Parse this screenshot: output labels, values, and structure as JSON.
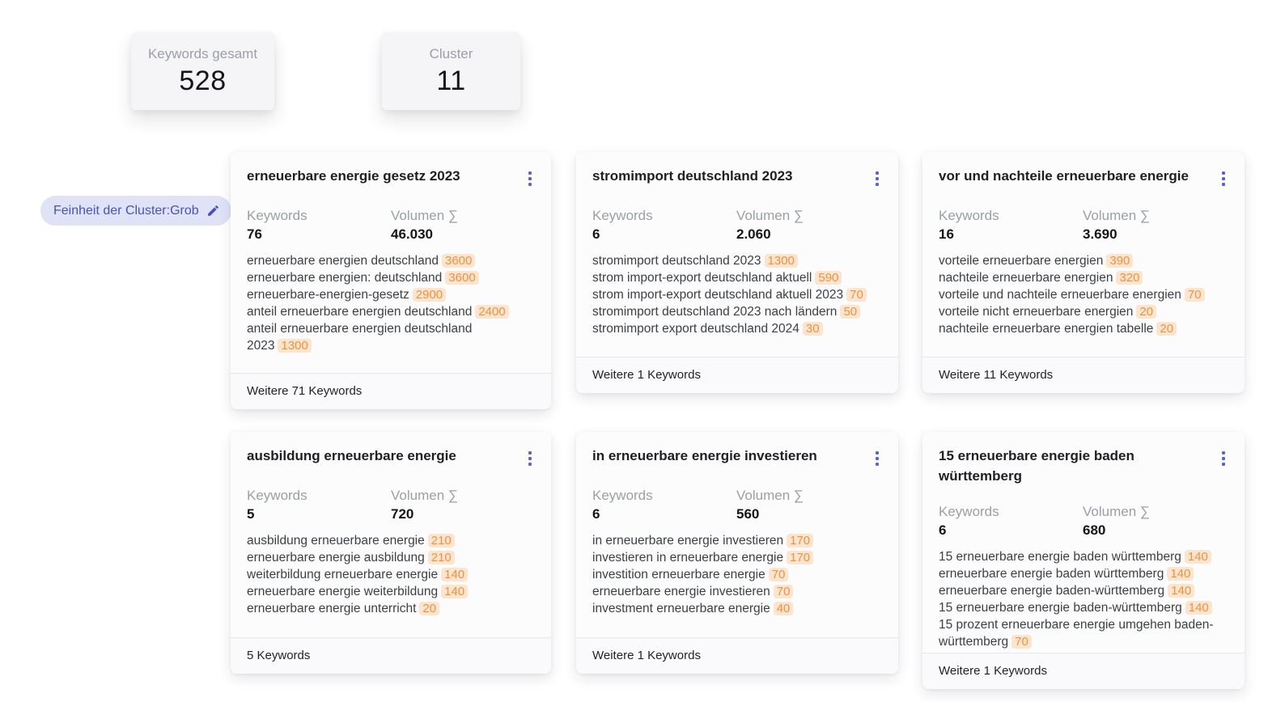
{
  "stats": [
    {
      "label": "Keywords gesamt",
      "value": "528"
    },
    {
      "label": "Cluster",
      "value": "11"
    }
  ],
  "granularity_chip": {
    "label": "Feinheit der Cluster:Grob",
    "icon": "pencil-icon"
  },
  "labels": {
    "keywords": "Keywords",
    "volume": "Volumen ∑"
  },
  "colors": {
    "accent_indigo": "#5a63c1",
    "chip_bg": "#e0e2f6",
    "chip_text": "#4a52b5",
    "badge_bg": "#fce5cf",
    "badge_text": "#ef913f"
  },
  "clusters": [
    {
      "title": "erneuerbare energie gesetz 2023",
      "keyword_count": "76",
      "volume_sum": "46.030",
      "keywords": [
        {
          "text": "erneuerbare energien deutschland",
          "volume": "3600"
        },
        {
          "text": "erneuerbare energien: deutschland",
          "volume": "3600"
        },
        {
          "text": "erneuerbare-energien-gesetz",
          "volume": "2900"
        },
        {
          "text": "anteil erneuerbare energien deutschland",
          "volume": "2400"
        },
        {
          "text": "anteil erneuerbare energien deutschland 2023",
          "volume": "1300"
        }
      ],
      "footer": "Weitere 71 Keywords"
    },
    {
      "title": "stromimport deutschland 2023",
      "keyword_count": "6",
      "volume_sum": "2.060",
      "keywords": [
        {
          "text": "stromimport deutschland 2023",
          "volume": "1300"
        },
        {
          "text": "strom import-export deutschland aktuell",
          "volume": "590"
        },
        {
          "text": "strom import-export deutschland aktuell 2023",
          "volume": "70"
        },
        {
          "text": "stromimport deutschland 2023 nach ländern",
          "volume": "50"
        },
        {
          "text": "stromimport export deutschland 2024",
          "volume": "30"
        }
      ],
      "footer": "Weitere 1 Keywords"
    },
    {
      "title": "vor und nachteile erneuerbare energie",
      "keyword_count": "16",
      "volume_sum": "3.690",
      "keywords": [
        {
          "text": "vorteile erneuerbare energien",
          "volume": "390"
        },
        {
          "text": "nachteile erneuerbare energien",
          "volume": "320"
        },
        {
          "text": "vorteile und nachteile erneuerbare energien",
          "volume": "70"
        },
        {
          "text": "vorteile nicht erneuerbare energien",
          "volume": "20"
        },
        {
          "text": "nachteile erneuerbare energien tabelle",
          "volume": "20"
        }
      ],
      "footer": "Weitere 11 Keywords"
    },
    {
      "title": "ausbildung erneuerbare energie",
      "keyword_count": "5",
      "volume_sum": "720",
      "keywords": [
        {
          "text": "ausbildung erneuerbare energie",
          "volume": "210"
        },
        {
          "text": "erneuerbare energie ausbildung",
          "volume": "210"
        },
        {
          "text": "weiterbildung erneuerbare energie",
          "volume": "140"
        },
        {
          "text": "erneuerbare energie weiterbildung",
          "volume": "140"
        },
        {
          "text": "erneuerbare energie unterricht",
          "volume": "20"
        }
      ],
      "footer": "5 Keywords"
    },
    {
      "title": "in erneuerbare energie investieren",
      "keyword_count": "6",
      "volume_sum": "560",
      "keywords": [
        {
          "text": "in erneuerbare energie investieren",
          "volume": "170"
        },
        {
          "text": "investieren in erneuerbare energie",
          "volume": "170"
        },
        {
          "text": "investition erneuerbare energie",
          "volume": "70"
        },
        {
          "text": "erneuerbare energie investieren",
          "volume": "70"
        },
        {
          "text": "investment erneuerbare energie",
          "volume": "40"
        }
      ],
      "footer": "Weitere 1 Keywords"
    },
    {
      "title": "15 erneuerbare energie baden württemberg",
      "keyword_count": "6",
      "volume_sum": "680",
      "keywords": [
        {
          "text": "15 erneuerbare energie baden württemberg",
          "volume": "140"
        },
        {
          "text": "erneuerbare energie baden württemberg",
          "volume": "140"
        },
        {
          "text": "erneuerbare energie baden-württemberg",
          "volume": "140"
        },
        {
          "text": "15 erneuerbare energie baden-württemberg",
          "volume": "140"
        },
        {
          "text": "15 prozent erneuerbare energie umgehen baden-württemberg",
          "volume": "70"
        }
      ],
      "footer": "Weitere 1 Keywords"
    }
  ]
}
